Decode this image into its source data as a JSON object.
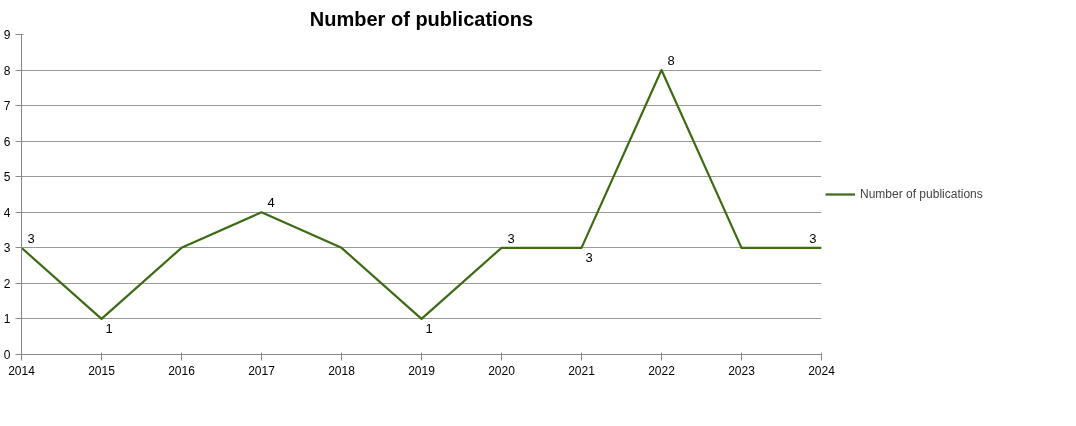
{
  "chart_data": {
    "type": "line",
    "title": "Number of publications",
    "x": [
      2014,
      2015,
      2016,
      2017,
      2018,
      2019,
      2020,
      2021,
      2022,
      2023,
      2024
    ],
    "series": [
      {
        "name": "Number of publications",
        "color": "#3d6b12",
        "values": [
          3,
          1,
          3,
          4,
          3,
          1,
          3,
          3,
          8,
          3,
          3
        ],
        "value_labels": [
          "3",
          "1",
          null,
          "4",
          null,
          "1",
          "3",
          "3",
          "8",
          null,
          "3"
        ]
      }
    ],
    "xlim": [
      2014,
      2024
    ],
    "xticks": [
      2014,
      2015,
      2016,
      2017,
      2018,
      2019,
      2020,
      2021,
      2022,
      2023,
      2024
    ],
    "ylim": [
      0,
      9
    ],
    "yticks": [
      0,
      1,
      2,
      3,
      4,
      5,
      6,
      7,
      8,
      9
    ],
    "grid": "y",
    "legend": "right",
    "marker": "none",
    "line_style": "solid"
  }
}
